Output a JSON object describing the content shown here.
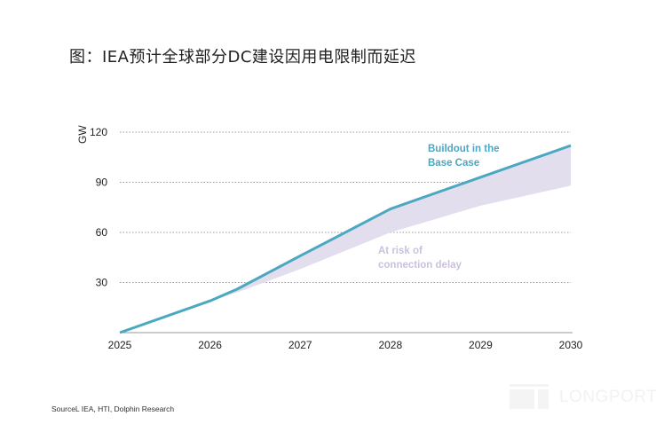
{
  "title": "图：IEA预计全球部分DC建设因用电限制而延迟",
  "source": "SourceL IEA, HTI, Dolphin Research",
  "watermark": "LONGPORT",
  "chart_data": {
    "type": "area",
    "title": "图：IEA预计全球部分DC建设因用电限制而延迟",
    "xlabel": "",
    "ylabel": "GW",
    "x": [
      2025,
      2026,
      2026.3,
      2027,
      2028,
      2029,
      2030
    ],
    "xticks": [
      "2025",
      "2026",
      "2027",
      "2028",
      "2029",
      "2030"
    ],
    "yticks": [
      "30",
      "60",
      "90",
      "120"
    ],
    "ylim": [
      0,
      120
    ],
    "xlim": [
      2025,
      2030
    ],
    "grid": "horizontal-dotted",
    "series": [
      {
        "name": "Buildout in the Base Case",
        "color": "#4aa8c1",
        "values": [
          0,
          19,
          26,
          46,
          74,
          93,
          112
        ]
      },
      {
        "name": "At risk of connection delay (lower bound)",
        "color": "#e3deed",
        "values": [
          0,
          19,
          24,
          38,
          60,
          76,
          88
        ]
      }
    ],
    "annotations": [
      {
        "label_lines": [
          "Buildout in the",
          "Base Case"
        ],
        "color": "#4aa8c1"
      },
      {
        "label_lines": [
          "At risk of",
          "connection delay"
        ],
        "color": "#cbc1dd"
      }
    ]
  }
}
